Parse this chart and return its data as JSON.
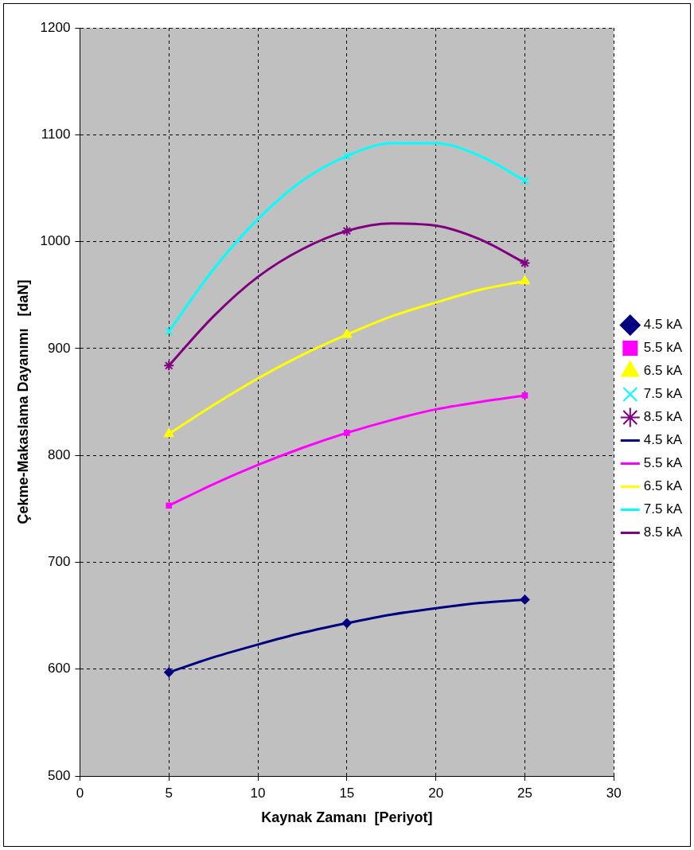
{
  "chart_data": {
    "type": "scatter",
    "xlabel": "Kaynak Zamanı  [Periyot]",
    "ylabel": "Çekme-Makaslama Dayanımı   [daN]",
    "xlim": [
      0,
      30
    ],
    "xticks": [
      0,
      5,
      10,
      15,
      20,
      25,
      30
    ],
    "ylim": [
      500,
      1200
    ],
    "yticks": [
      500,
      600,
      700,
      800,
      900,
      1000,
      1100,
      1200
    ],
    "grid": true,
    "legend": "right",
    "series": [
      {
        "name": "4.5 kA",
        "type": "scatter",
        "marker": "diamond",
        "color": "#000080",
        "x": [
          5,
          15,
          25
        ],
        "values": [
          597,
          643,
          665
        ]
      },
      {
        "name": "5.5 kA",
        "type": "scatter",
        "marker": "square",
        "color": "#ff00ff",
        "x": [
          5,
          15,
          25
        ],
        "values": [
          753,
          821,
          856
        ]
      },
      {
        "name": "6.5 kA",
        "type": "scatter",
        "marker": "triangle",
        "color": "#ffff00",
        "x": [
          5,
          15,
          25
        ],
        "values": [
          820,
          913,
          963
        ]
      },
      {
        "name": "7.5 kA",
        "type": "scatter",
        "marker": "cross",
        "color": "#00ffff",
        "x": [
          5,
          15,
          25
        ],
        "values": [
          916,
          1080,
          1057
        ]
      },
      {
        "name": "8.5 kA",
        "type": "scatter",
        "marker": "cross",
        "color": "#800080",
        "x": [
          5,
          15,
          25
        ],
        "values": [
          884,
          1010,
          980
        ]
      },
      {
        "name": "4.5 kA",
        "type": "line",
        "marker": "none",
        "color": "#000080",
        "x": [
          5,
          7.5,
          10,
          12.5,
          15,
          17.5,
          20,
          22.5,
          25
        ],
        "values": [
          597,
          611,
          623,
          634,
          643,
          651,
          657,
          662,
          665
        ]
      },
      {
        "name": "5.5 kA",
        "type": "line",
        "marker": "none",
        "color": "#ff00ff",
        "x": [
          5,
          7.5,
          10,
          12.5,
          15,
          17.5,
          20,
          22.5,
          25
        ],
        "values": [
          753,
          773,
          791,
          807,
          821,
          833,
          843,
          850,
          856
        ]
      },
      {
        "name": "6.5 kA",
        "type": "line",
        "marker": "none",
        "color": "#ffff00",
        "x": [
          5,
          7.5,
          10,
          12.5,
          15,
          17.5,
          20,
          22.5,
          25
        ],
        "values": [
          820,
          847,
          872,
          894,
          913,
          930,
          943,
          955,
          963
        ]
      },
      {
        "name": "7.5 kA",
        "type": "line",
        "marker": "none",
        "color": "#00ffff",
        "x": [
          5,
          7.5,
          10,
          12.5,
          15,
          17.5,
          20,
          22.5,
          25
        ],
        "values": [
          916,
          974,
          1021,
          1057,
          1080,
          1092,
          1092,
          1080,
          1057
        ]
      },
      {
        "name": "8.5 kA",
        "type": "line",
        "marker": "none",
        "color": "#800080",
        "x": [
          5,
          7.5,
          10,
          12.5,
          15,
          17.5,
          20,
          22.5,
          25
        ],
        "values": [
          884,
          930,
          967,
          993,
          1010,
          1017,
          1015,
          1002,
          980
        ]
      }
    ]
  }
}
